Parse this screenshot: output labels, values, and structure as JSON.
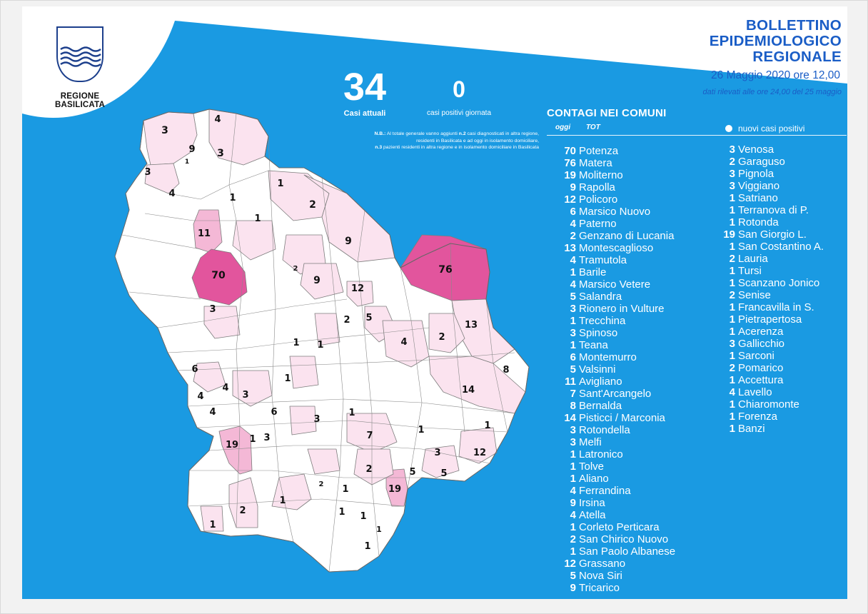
{
  "logo": {
    "line1": "REGIONE",
    "line2": "BASILICATA"
  },
  "header": {
    "title_lines": [
      "BOLLETTINO",
      "EPIDEMIOLOGICO",
      "REGIONALE"
    ],
    "date": "26 Maggio 2020 ore 12,00",
    "note": "dati rilevati alle ore 24,00 del 25 maggio"
  },
  "stats": {
    "current_cases_value": "34",
    "current_cases_label": "Casi attuali",
    "daily_positive_value": "0",
    "daily_positive_label": "casi positivi giornata"
  },
  "note_lines": {
    "l1_bold": "N.B.:",
    "l1_text": " Al totale generale vanno aggiunti ",
    "l1_bold2": "n.2",
    "l1_text2": " casi diagnosticati in altra regione,",
    "l2": "residenti in Basilicata e ad oggi in isolamento domiciliare,",
    "l3_bold": "n.3",
    "l3_text": " pazienti residenti in altra regione e in isolamento domiciliare in Basilicata"
  },
  "section": {
    "title": "CONTAGI NEI COMUNI",
    "col_today": "oggi",
    "col_total": "TOT",
    "legend": "nuovi casi positivi"
  },
  "comuni_left": [
    {
      "n": "70",
      "name": "Potenza"
    },
    {
      "n": "76",
      "name": "Matera"
    },
    {
      "n": "19",
      "name": "Moliterno"
    },
    {
      "n": "9",
      "name": "Rapolla"
    },
    {
      "n": "12",
      "name": "Policoro"
    },
    {
      "n": "6",
      "name": "Marsico Nuovo"
    },
    {
      "n": "4",
      "name": "Paterno"
    },
    {
      "n": "2",
      "name": "Genzano di Lucania"
    },
    {
      "n": "13",
      "name": "Montescaglioso"
    },
    {
      "n": "4",
      "name": "Tramutola"
    },
    {
      "n": "1",
      "name": "Barile"
    },
    {
      "n": "4",
      "name": "Marsico Vetere"
    },
    {
      "n": "5",
      "name": "Salandra"
    },
    {
      "n": "3",
      "name": "Rionero in Vulture"
    },
    {
      "n": "1",
      "name": "Trecchina"
    },
    {
      "n": "3",
      "name": "Spinoso"
    },
    {
      "n": "1",
      "name": "Teana"
    },
    {
      "n": "6",
      "name": "Montemurro"
    },
    {
      "n": "5",
      "name": "Valsinni"
    },
    {
      "n": "11",
      "name": "Avigliano"
    },
    {
      "n": "7",
      "name": "Sant'Arcangelo"
    },
    {
      "n": "8",
      "name": "Bernalda"
    },
    {
      "n": "14",
      "name": "Pisticci / Marconia"
    },
    {
      "n": "3",
      "name": "Rotondella"
    },
    {
      "n": "3",
      "name": "Melfi"
    },
    {
      "n": "1",
      "name": "Latronico"
    },
    {
      "n": "1",
      "name": "Tolve"
    },
    {
      "n": "1",
      "name": "Aliano"
    },
    {
      "n": "4",
      "name": "Ferrandina"
    },
    {
      "n": "9",
      "name": "Irsina"
    },
    {
      "n": "4",
      "name": "Atella"
    },
    {
      "n": "1",
      "name": "Corleto Perticara"
    },
    {
      "n": "2",
      "name": "San Chirico Nuovo"
    },
    {
      "n": "1",
      "name": "San Paolo Albanese"
    },
    {
      "n": "12",
      "name": "Grassano"
    },
    {
      "n": "5",
      "name": "Nova Siri"
    },
    {
      "n": "9",
      "name": "Tricarico"
    }
  ],
  "comuni_right": [
    {
      "n": "3",
      "name": "Venosa"
    },
    {
      "n": "2",
      "name": "Garaguso"
    },
    {
      "n": "3",
      "name": "Pignola"
    },
    {
      "n": "3",
      "name": "Viggiano"
    },
    {
      "n": "1",
      "name": "Satriano"
    },
    {
      "n": "1",
      "name": "Terranova di P."
    },
    {
      "n": "1",
      "name": "Rotonda"
    },
    {
      "n": "19",
      "name": "San Giorgio L."
    },
    {
      "n": "1",
      "name": "San Costantino A."
    },
    {
      "n": "2",
      "name": "Lauria"
    },
    {
      "n": "1",
      "name": "Tursi"
    },
    {
      "n": "1",
      "name": "Scanzano Jonico"
    },
    {
      "n": "2",
      "name": "Senise"
    },
    {
      "n": "1",
      "name": "Francavilla in S."
    },
    {
      "n": "1",
      "name": "Pietrapertosa"
    },
    {
      "n": "1",
      "name": "Acerenza"
    },
    {
      "n": "3",
      "name": "Gallicchio"
    },
    {
      "n": "1",
      "name": "Sarconi"
    },
    {
      "n": "2",
      "name": "Pomarico"
    },
    {
      "n": "1",
      "name": "Accettura"
    },
    {
      "n": "4",
      "name": "Lavello"
    },
    {
      "n": "1",
      "name": "Chiaromonte"
    },
    {
      "n": "1",
      "name": "Forenza"
    },
    {
      "n": "1",
      "name": "Banzi"
    }
  ],
  "map_labels": [
    "4",
    "3",
    "9",
    "1",
    "3",
    "3",
    "4",
    "1",
    "2",
    "1",
    "11",
    "1",
    "9",
    "70",
    "76",
    "2",
    "9",
    "12",
    "3",
    "2",
    "5",
    "13",
    "1",
    "1",
    "4",
    "2",
    "6",
    "1",
    "8",
    "4",
    "4",
    "3",
    "14",
    "6",
    "4",
    "3",
    "1",
    "1",
    "19",
    "1",
    "3",
    "7",
    "1",
    "3",
    "12",
    "2",
    "5",
    "5",
    "2",
    "19",
    "1",
    "1",
    "2",
    "1",
    "1",
    "1",
    "1",
    "1"
  ],
  "colors": {
    "blue": "#1a9ae2",
    "title_blue": "#1a5dc6",
    "map_fill": "#ffffff",
    "map_light": "#fbe3ef",
    "map_medium": "#f4b8d6",
    "map_strong": "#e2559d"
  }
}
